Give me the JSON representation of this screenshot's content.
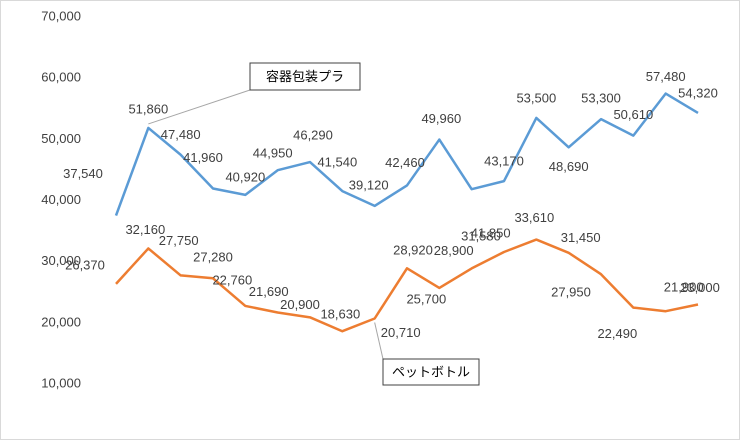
{
  "chart_data": {
    "type": "line",
    "categories": [
      null,
      null,
      null,
      null,
      null,
      null,
      null,
      null,
      null,
      null,
      null,
      null,
      null,
      null,
      null,
      null,
      null,
      null,
      null
    ],
    "ylim": [
      10000,
      70000
    ],
    "yticks": [
      {
        "value": 10000,
        "label": "10,000"
      },
      {
        "value": 20000,
        "label": "20,000"
      },
      {
        "value": 30000,
        "label": "30,000"
      },
      {
        "value": 40000,
        "label": "40,000"
      },
      {
        "value": 50000,
        "label": "50,000"
      },
      {
        "value": 60000,
        "label": "60,000"
      },
      {
        "value": 70000,
        "label": "70,000"
      }
    ],
    "grid": false,
    "series": [
      {
        "name": "容器包装プラ",
        "color": "#5b9bd5",
        "values": [
          37540,
          51860,
          47480,
          41960,
          40920,
          44950,
          46290,
          41540,
          39120,
          42460,
          49960,
          41850,
          43170,
          53500,
          48690,
          53300,
          50610,
          57480,
          54320
        ],
        "value_labels": [
          "37,540",
          "51,860",
          "47,480",
          "41,960",
          "40,920",
          "44,950",
          "46,290",
          "41,540",
          "39,120",
          "42,460",
          "49,960",
          "41,850",
          "43,170",
          "53,500",
          "48,690",
          "53,300",
          "50,610",
          "57,480",
          "54,320"
        ]
      },
      {
        "name": "ペットボトル",
        "color": "#ed7d31",
        "values": [
          26370,
          32160,
          27750,
          27280,
          22760,
          21690,
          20900,
          18630,
          20710,
          28920,
          25700,
          28900,
          31580,
          33610,
          31450,
          27950,
          22490,
          21900,
          23000
        ],
        "value_labels": [
          "26,370",
          "32,160",
          "27,750",
          "27,280",
          "22,760",
          "21,690",
          "20,900",
          "18,630",
          "20,710",
          "28,920",
          "25,700",
          "28,900",
          "31,580",
          "33,610",
          "31,450",
          "27,950",
          "22,490",
          "21,900",
          "23,000"
        ]
      }
    ]
  }
}
